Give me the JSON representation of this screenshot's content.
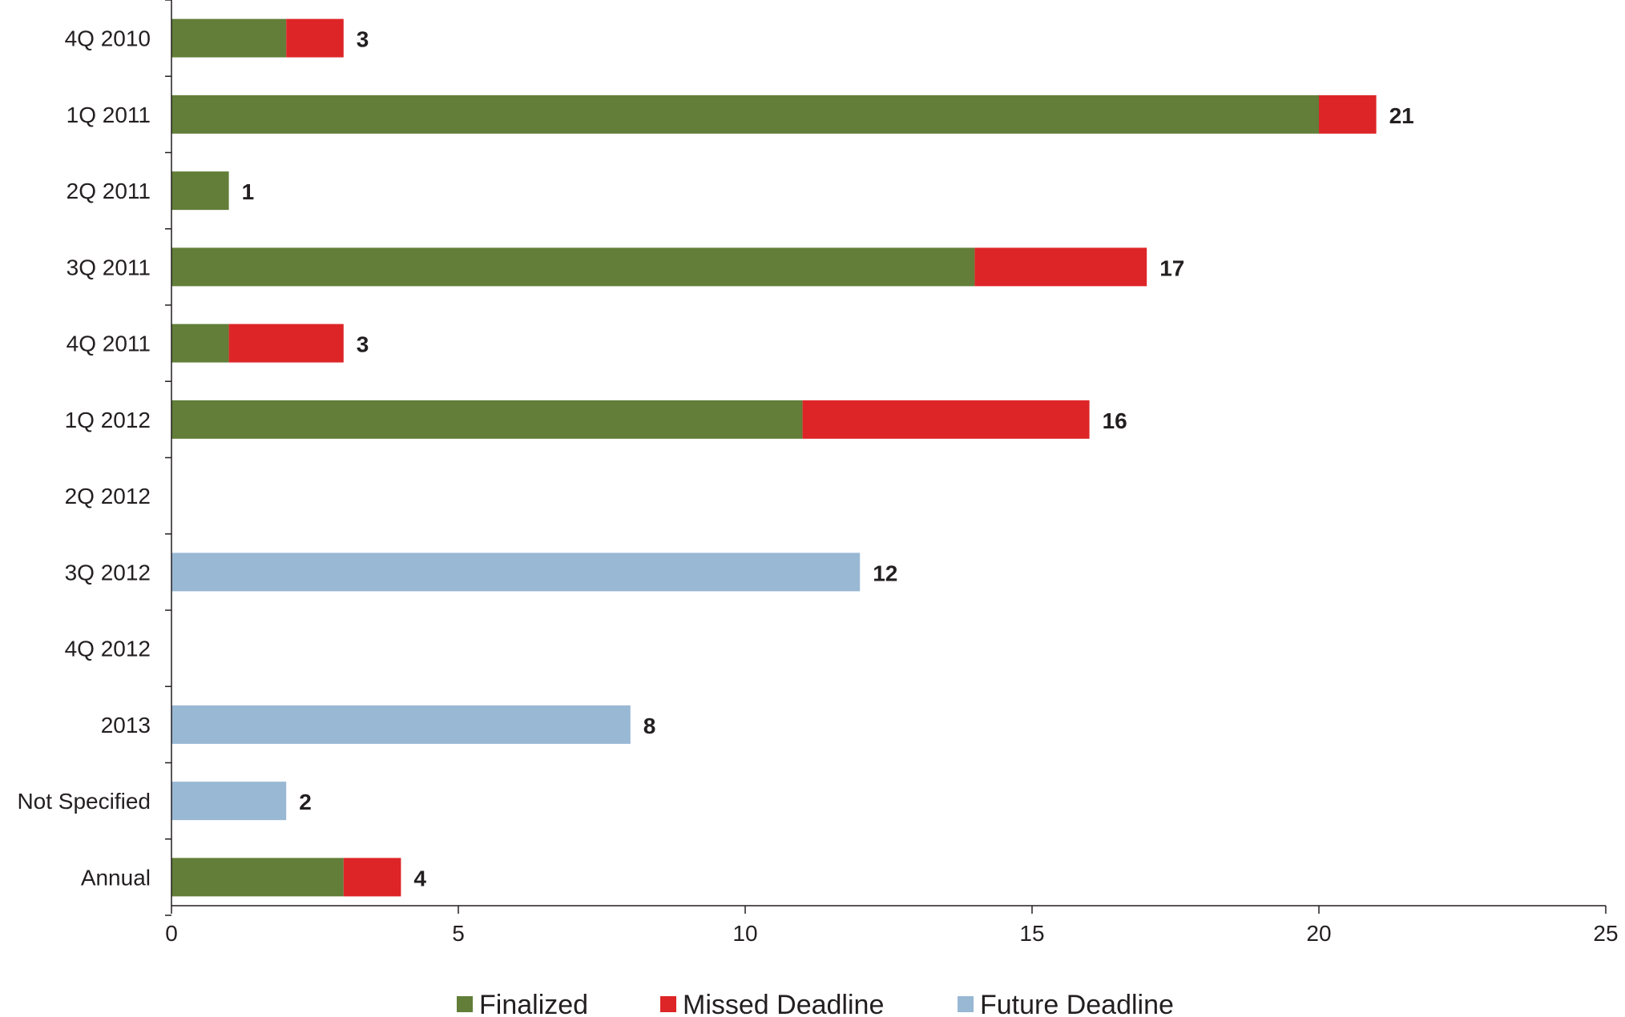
{
  "chart_data": {
    "type": "bar",
    "orientation": "horizontal",
    "stacked": true,
    "categories": [
      "4Q 2010",
      "1Q 2011",
      "2Q 2011",
      "3Q 2011",
      "4Q 2011",
      "1Q 2012",
      "2Q 2012",
      "3Q 2012",
      "4Q 2012",
      "2013",
      "Not Specified",
      "Annual"
    ],
    "series": [
      {
        "name": "Finalized",
        "color": "#627e38",
        "values": [
          2,
          20,
          1,
          14,
          1,
          11,
          0,
          0,
          0,
          0,
          0,
          3
        ]
      },
      {
        "name": "Missed Deadline",
        "color": "#dd2527",
        "values": [
          1,
          1,
          0,
          3,
          2,
          5,
          0,
          0,
          0,
          0,
          0,
          1
        ]
      },
      {
        "name": "Future Deadline",
        "color": "#98b8d4",
        "values": [
          0,
          0,
          0,
          0,
          0,
          0,
          0,
          12,
          0,
          8,
          2,
          0
        ]
      }
    ],
    "totals": [
      "3",
      "21",
      "1",
      "17",
      "3",
      "16",
      "",
      "12",
      "",
      "8",
      "2",
      "4"
    ],
    "xlim": [
      0,
      25
    ],
    "xticks": [
      "0",
      "5",
      "10",
      "15",
      "20",
      "25"
    ],
    "xlabel": "",
    "ylabel": "",
    "grid": false,
    "legend_position": "bottom"
  }
}
